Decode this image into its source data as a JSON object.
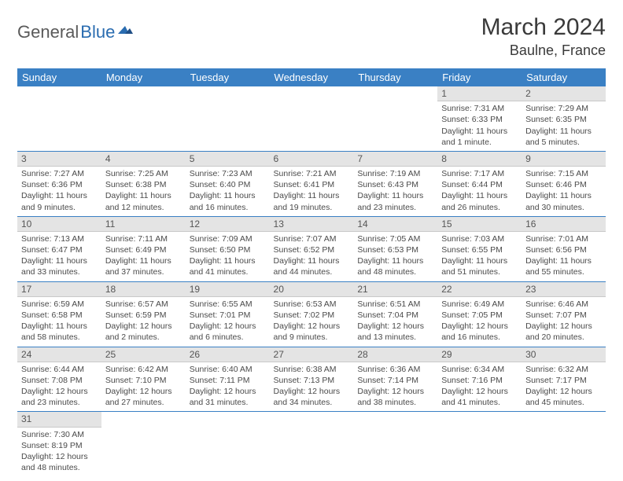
{
  "logo": {
    "part1": "General",
    "part2": "Blue"
  },
  "title": "March 2024",
  "location": "Baulne, France",
  "colors": {
    "header_bg": "#3a80c4",
    "header_text": "#ffffff",
    "daynum_bg": "#e4e4e4",
    "cell_border": "#3a80c4",
    "logo_dark": "#5a5a5a",
    "logo_blue": "#2a6cb0"
  },
  "day_headers": [
    "Sunday",
    "Monday",
    "Tuesday",
    "Wednesday",
    "Thursday",
    "Friday",
    "Saturday"
  ],
  "weeks": [
    [
      {
        "n": "",
        "lines": []
      },
      {
        "n": "",
        "lines": []
      },
      {
        "n": "",
        "lines": []
      },
      {
        "n": "",
        "lines": []
      },
      {
        "n": "",
        "lines": []
      },
      {
        "n": "1",
        "lines": [
          "Sunrise: 7:31 AM",
          "Sunset: 6:33 PM",
          "Daylight: 11 hours",
          "and 1 minute."
        ]
      },
      {
        "n": "2",
        "lines": [
          "Sunrise: 7:29 AM",
          "Sunset: 6:35 PM",
          "Daylight: 11 hours",
          "and 5 minutes."
        ]
      }
    ],
    [
      {
        "n": "3",
        "lines": [
          "Sunrise: 7:27 AM",
          "Sunset: 6:36 PM",
          "Daylight: 11 hours",
          "and 9 minutes."
        ]
      },
      {
        "n": "4",
        "lines": [
          "Sunrise: 7:25 AM",
          "Sunset: 6:38 PM",
          "Daylight: 11 hours",
          "and 12 minutes."
        ]
      },
      {
        "n": "5",
        "lines": [
          "Sunrise: 7:23 AM",
          "Sunset: 6:40 PM",
          "Daylight: 11 hours",
          "and 16 minutes."
        ]
      },
      {
        "n": "6",
        "lines": [
          "Sunrise: 7:21 AM",
          "Sunset: 6:41 PM",
          "Daylight: 11 hours",
          "and 19 minutes."
        ]
      },
      {
        "n": "7",
        "lines": [
          "Sunrise: 7:19 AM",
          "Sunset: 6:43 PM",
          "Daylight: 11 hours",
          "and 23 minutes."
        ]
      },
      {
        "n": "8",
        "lines": [
          "Sunrise: 7:17 AM",
          "Sunset: 6:44 PM",
          "Daylight: 11 hours",
          "and 26 minutes."
        ]
      },
      {
        "n": "9",
        "lines": [
          "Sunrise: 7:15 AM",
          "Sunset: 6:46 PM",
          "Daylight: 11 hours",
          "and 30 minutes."
        ]
      }
    ],
    [
      {
        "n": "10",
        "lines": [
          "Sunrise: 7:13 AM",
          "Sunset: 6:47 PM",
          "Daylight: 11 hours",
          "and 33 minutes."
        ]
      },
      {
        "n": "11",
        "lines": [
          "Sunrise: 7:11 AM",
          "Sunset: 6:49 PM",
          "Daylight: 11 hours",
          "and 37 minutes."
        ]
      },
      {
        "n": "12",
        "lines": [
          "Sunrise: 7:09 AM",
          "Sunset: 6:50 PM",
          "Daylight: 11 hours",
          "and 41 minutes."
        ]
      },
      {
        "n": "13",
        "lines": [
          "Sunrise: 7:07 AM",
          "Sunset: 6:52 PM",
          "Daylight: 11 hours",
          "and 44 minutes."
        ]
      },
      {
        "n": "14",
        "lines": [
          "Sunrise: 7:05 AM",
          "Sunset: 6:53 PM",
          "Daylight: 11 hours",
          "and 48 minutes."
        ]
      },
      {
        "n": "15",
        "lines": [
          "Sunrise: 7:03 AM",
          "Sunset: 6:55 PM",
          "Daylight: 11 hours",
          "and 51 minutes."
        ]
      },
      {
        "n": "16",
        "lines": [
          "Sunrise: 7:01 AM",
          "Sunset: 6:56 PM",
          "Daylight: 11 hours",
          "and 55 minutes."
        ]
      }
    ],
    [
      {
        "n": "17",
        "lines": [
          "Sunrise: 6:59 AM",
          "Sunset: 6:58 PM",
          "Daylight: 11 hours",
          "and 58 minutes."
        ]
      },
      {
        "n": "18",
        "lines": [
          "Sunrise: 6:57 AM",
          "Sunset: 6:59 PM",
          "Daylight: 12 hours",
          "and 2 minutes."
        ]
      },
      {
        "n": "19",
        "lines": [
          "Sunrise: 6:55 AM",
          "Sunset: 7:01 PM",
          "Daylight: 12 hours",
          "and 6 minutes."
        ]
      },
      {
        "n": "20",
        "lines": [
          "Sunrise: 6:53 AM",
          "Sunset: 7:02 PM",
          "Daylight: 12 hours",
          "and 9 minutes."
        ]
      },
      {
        "n": "21",
        "lines": [
          "Sunrise: 6:51 AM",
          "Sunset: 7:04 PM",
          "Daylight: 12 hours",
          "and 13 minutes."
        ]
      },
      {
        "n": "22",
        "lines": [
          "Sunrise: 6:49 AM",
          "Sunset: 7:05 PM",
          "Daylight: 12 hours",
          "and 16 minutes."
        ]
      },
      {
        "n": "23",
        "lines": [
          "Sunrise: 6:46 AM",
          "Sunset: 7:07 PM",
          "Daylight: 12 hours",
          "and 20 minutes."
        ]
      }
    ],
    [
      {
        "n": "24",
        "lines": [
          "Sunrise: 6:44 AM",
          "Sunset: 7:08 PM",
          "Daylight: 12 hours",
          "and 23 minutes."
        ]
      },
      {
        "n": "25",
        "lines": [
          "Sunrise: 6:42 AM",
          "Sunset: 7:10 PM",
          "Daylight: 12 hours",
          "and 27 minutes."
        ]
      },
      {
        "n": "26",
        "lines": [
          "Sunrise: 6:40 AM",
          "Sunset: 7:11 PM",
          "Daylight: 12 hours",
          "and 31 minutes."
        ]
      },
      {
        "n": "27",
        "lines": [
          "Sunrise: 6:38 AM",
          "Sunset: 7:13 PM",
          "Daylight: 12 hours",
          "and 34 minutes."
        ]
      },
      {
        "n": "28",
        "lines": [
          "Sunrise: 6:36 AM",
          "Sunset: 7:14 PM",
          "Daylight: 12 hours",
          "and 38 minutes."
        ]
      },
      {
        "n": "29",
        "lines": [
          "Sunrise: 6:34 AM",
          "Sunset: 7:16 PM",
          "Daylight: 12 hours",
          "and 41 minutes."
        ]
      },
      {
        "n": "30",
        "lines": [
          "Sunrise: 6:32 AM",
          "Sunset: 7:17 PM",
          "Daylight: 12 hours",
          "and 45 minutes."
        ]
      }
    ],
    [
      {
        "n": "31",
        "lines": [
          "Sunrise: 7:30 AM",
          "Sunset: 8:19 PM",
          "Daylight: 12 hours",
          "and 48 minutes."
        ]
      },
      {
        "n": "",
        "lines": []
      },
      {
        "n": "",
        "lines": []
      },
      {
        "n": "",
        "lines": []
      },
      {
        "n": "",
        "lines": []
      },
      {
        "n": "",
        "lines": []
      },
      {
        "n": "",
        "lines": []
      }
    ]
  ]
}
